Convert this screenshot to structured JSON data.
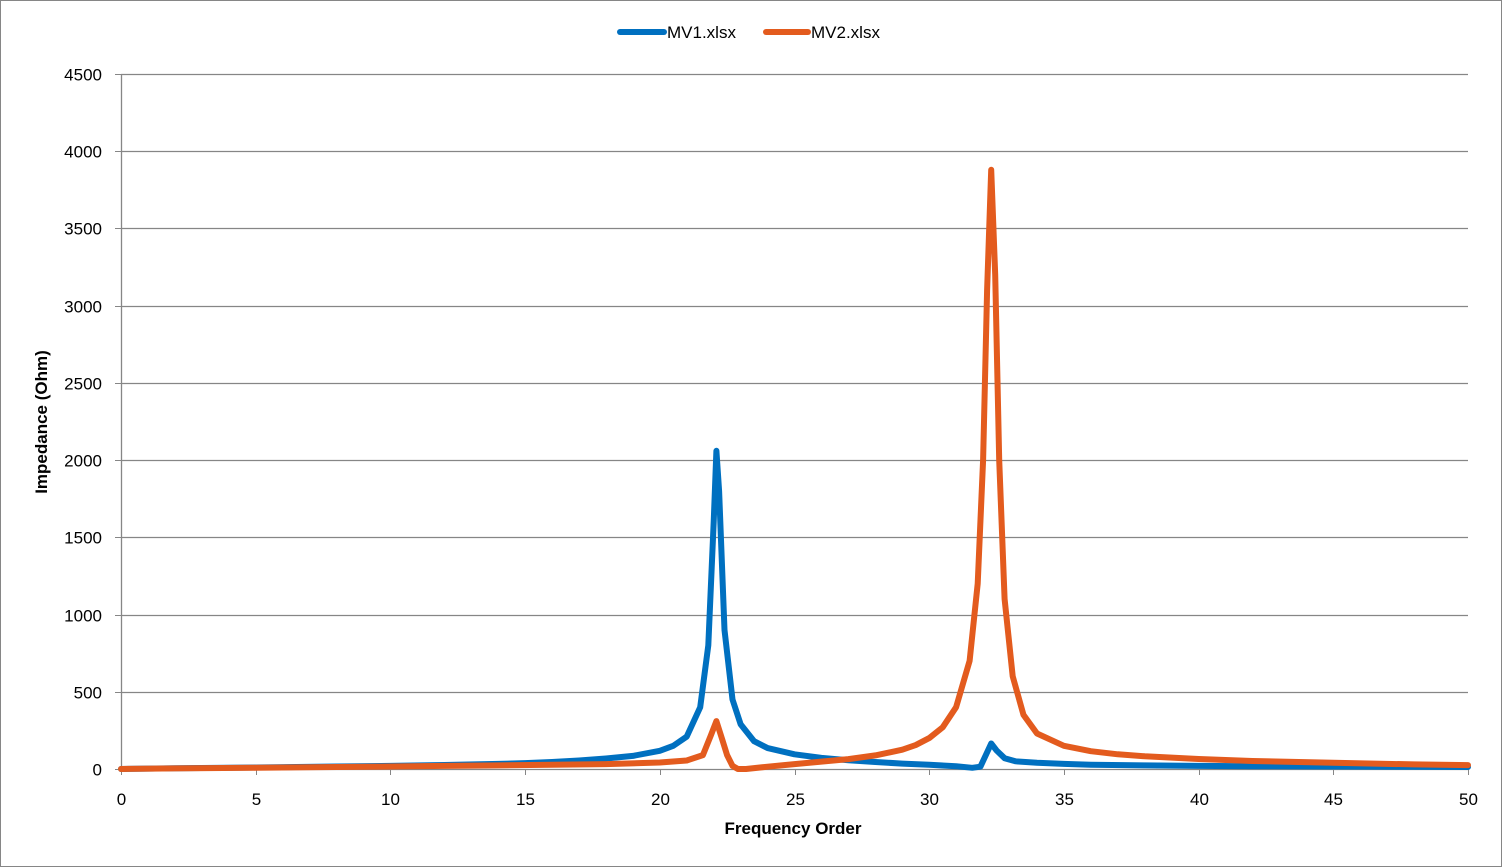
{
  "chart_data": {
    "type": "line",
    "title": "",
    "xlabel": "Frequency Order",
    "ylabel": "Impedance (Ohm)",
    "xlim": [
      0,
      50
    ],
    "ylim": [
      0,
      4500
    ],
    "x_ticks": [
      0,
      5,
      10,
      15,
      20,
      25,
      30,
      35,
      40,
      45,
      50
    ],
    "y_ticks": [
      0,
      500,
      1000,
      1500,
      2000,
      2500,
      3000,
      3500,
      4000,
      4500
    ],
    "grid": {
      "horizontal": true,
      "vertical": false
    },
    "legend": {
      "position": "top-center"
    },
    "series": [
      {
        "name": "MV1.xlsx",
        "color": "#0070C0",
        "points": [
          [
            0,
            0
          ],
          [
            2,
            5
          ],
          [
            5,
            10
          ],
          [
            8,
            16
          ],
          [
            10,
            20
          ],
          [
            12,
            26
          ],
          [
            14,
            33
          ],
          [
            15,
            38
          ],
          [
            16,
            45
          ],
          [
            17,
            55
          ],
          [
            18,
            68
          ],
          [
            19,
            85
          ],
          [
            20,
            118
          ],
          [
            20.5,
            150
          ],
          [
            21,
            210
          ],
          [
            21.5,
            400
          ],
          [
            21.8,
            800
          ],
          [
            22,
            1600
          ],
          [
            22.1,
            2060
          ],
          [
            22.2,
            1800
          ],
          [
            22.4,
            900
          ],
          [
            22.7,
            450
          ],
          [
            23,
            290
          ],
          [
            23.5,
            180
          ],
          [
            24,
            135
          ],
          [
            25,
            95
          ],
          [
            26,
            72
          ],
          [
            27,
            57
          ],
          [
            28,
            45
          ],
          [
            29,
            35
          ],
          [
            30,
            27
          ],
          [
            31,
            18
          ],
          [
            31.6,
            8
          ],
          [
            31.9,
            15
          ],
          [
            32.1,
            90
          ],
          [
            32.3,
            165
          ],
          [
            32.5,
            120
          ],
          [
            32.8,
            70
          ],
          [
            33.2,
            50
          ],
          [
            34,
            40
          ],
          [
            35,
            33
          ],
          [
            36,
            28
          ],
          [
            38,
            23
          ],
          [
            40,
            20
          ],
          [
            42,
            18
          ],
          [
            45,
            16
          ],
          [
            48,
            14
          ],
          [
            50,
            13
          ]
        ]
      },
      {
        "name": "MV2.xlsx",
        "color": "#E35B1E",
        "points": [
          [
            0,
            0
          ],
          [
            2,
            4
          ],
          [
            5,
            8
          ],
          [
            8,
            13
          ],
          [
            10,
            16
          ],
          [
            12,
            20
          ],
          [
            14,
            23
          ],
          [
            16,
            27
          ],
          [
            18,
            32
          ],
          [
            20,
            42
          ],
          [
            21,
            55
          ],
          [
            21.6,
            90
          ],
          [
            21.9,
            220
          ],
          [
            22.1,
            310
          ],
          [
            22.3,
            200
          ],
          [
            22.5,
            90
          ],
          [
            22.7,
            20
          ],
          [
            22.9,
            0
          ],
          [
            23.2,
            0
          ],
          [
            24,
            15
          ],
          [
            25,
            32
          ],
          [
            26,
            48
          ],
          [
            27,
            64
          ],
          [
            28,
            88
          ],
          [
            29,
            125
          ],
          [
            29.5,
            155
          ],
          [
            30,
            200
          ],
          [
            30.5,
            270
          ],
          [
            31,
            400
          ],
          [
            31.5,
            700
          ],
          [
            31.8,
            1200
          ],
          [
            32.0,
            2000
          ],
          [
            32.15,
            3100
          ],
          [
            32.3,
            3880
          ],
          [
            32.45,
            3200
          ],
          [
            32.6,
            2000
          ],
          [
            32.8,
            1100
          ],
          [
            33.1,
            600
          ],
          [
            33.5,
            350
          ],
          [
            34,
            230
          ],
          [
            35,
            150
          ],
          [
            36,
            115
          ],
          [
            37,
            95
          ],
          [
            38,
            82
          ],
          [
            40,
            65
          ],
          [
            42,
            52
          ],
          [
            45,
            40
          ],
          [
            48,
            30
          ],
          [
            50,
            25
          ]
        ]
      }
    ]
  }
}
